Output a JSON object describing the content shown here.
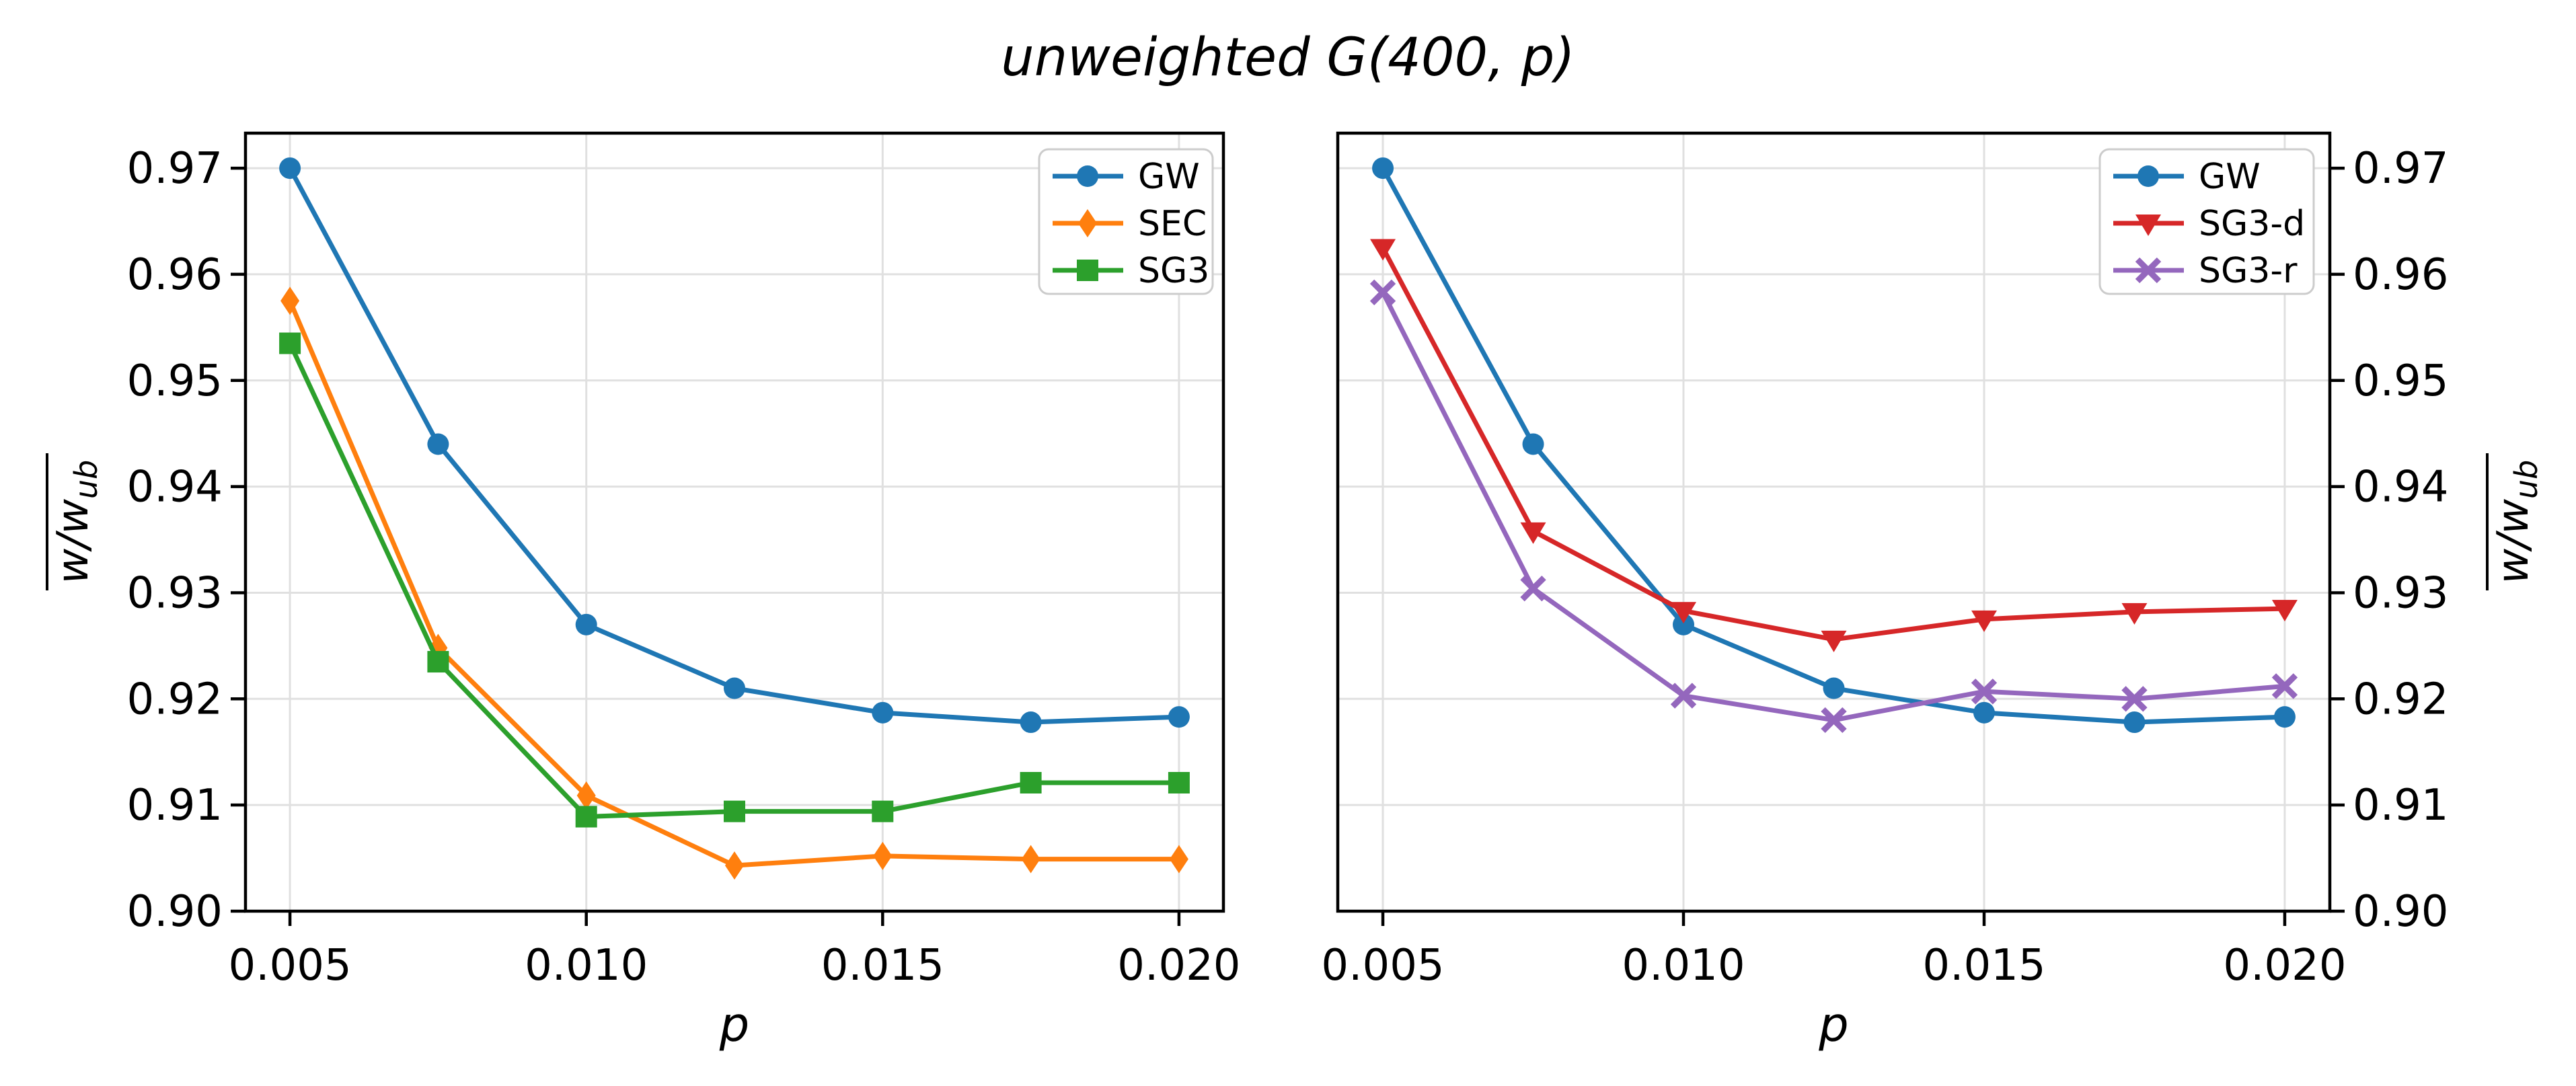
{
  "title": "unweighted G(400, p)",
  "figure": {
    "background": "#ffffff",
    "grid_color": "#e0e0e0",
    "spine_color": "#000000",
    "text_color": "#000000",
    "legend_border_color": "#cccccc",
    "legend_background": "#ffffff"
  },
  "chart_data": [
    {
      "type": "line",
      "panel": "left",
      "xlabel": "p",
      "ylabel": {
        "base": "w/w",
        "sub": "ub",
        "overline": true
      },
      "x": [
        0.005,
        0.0075,
        0.01,
        0.0125,
        0.015,
        0.0175,
        0.02
      ],
      "xlim": [
        0.00425,
        0.02075
      ],
      "ylim": [
        0.9,
        0.9733
      ],
      "xticks": {
        "values": [
          0.005,
          0.01,
          0.015,
          0.02
        ],
        "labels": [
          "0.005",
          "0.010",
          "0.015",
          "0.020"
        ]
      },
      "yticks": {
        "values": [
          0.9,
          0.91,
          0.92,
          0.93,
          0.94,
          0.95,
          0.96,
          0.97
        ],
        "labels": [
          "0.90",
          "0.91",
          "0.92",
          "0.93",
          "0.94",
          "0.95",
          "0.96",
          "0.97"
        ]
      },
      "y_axis_side": "left",
      "grid": true,
      "legend_position": "upper right",
      "series": [
        {
          "name": "GW",
          "color": "#1f77b4",
          "marker": "circle",
          "values": [
            0.97,
            0.944,
            0.927,
            0.921,
            0.9187,
            0.9178,
            0.9183
          ]
        },
        {
          "name": "SEC",
          "color": "#ff7f0e",
          "marker": "diamond",
          "values": [
            0.9575,
            0.9248,
            0.9109,
            0.9043,
            0.9052,
            0.9049,
            0.9049
          ]
        },
        {
          "name": "SG3",
          "color": "#2ca02c",
          "marker": "square",
          "values": [
            0.9535,
            0.9235,
            0.9089,
            0.9094,
            0.9094,
            0.9121,
            0.9121
          ]
        }
      ]
    },
    {
      "type": "line",
      "panel": "right",
      "xlabel": "p",
      "ylabel": {
        "base": "w/w",
        "sub": "ub",
        "overline": true
      },
      "x": [
        0.005,
        0.0075,
        0.01,
        0.0125,
        0.015,
        0.0175,
        0.02
      ],
      "xlim": [
        0.00425,
        0.02075
      ],
      "ylim": [
        0.9,
        0.9733
      ],
      "xticks": {
        "values": [
          0.005,
          0.01,
          0.015,
          0.02
        ],
        "labels": [
          "0.005",
          "0.010",
          "0.015",
          "0.020"
        ]
      },
      "yticks": {
        "values": [
          0.9,
          0.91,
          0.92,
          0.93,
          0.94,
          0.95,
          0.96,
          0.97
        ],
        "labels": [
          "0.90",
          "0.91",
          "0.92",
          "0.93",
          "0.94",
          "0.95",
          "0.96",
          "0.97"
        ]
      },
      "y_axis_side": "right",
      "grid": true,
      "legend_position": "upper right",
      "series": [
        {
          "name": "GW",
          "color": "#1f77b4",
          "marker": "circle",
          "values": [
            0.97,
            0.944,
            0.927,
            0.921,
            0.9187,
            0.9178,
            0.9183
          ]
        },
        {
          "name": "SG3-d",
          "color": "#d62728",
          "marker": "triangle-down",
          "values": [
            0.9625,
            0.9358,
            0.9283,
            0.9256,
            0.9275,
            0.9282,
            0.9285
          ]
        },
        {
          "name": "SG3-r",
          "color": "#9467bd",
          "marker": "x",
          "values": [
            0.9583,
            0.9304,
            0.9203,
            0.918,
            0.9207,
            0.92,
            0.9212
          ]
        }
      ]
    }
  ]
}
